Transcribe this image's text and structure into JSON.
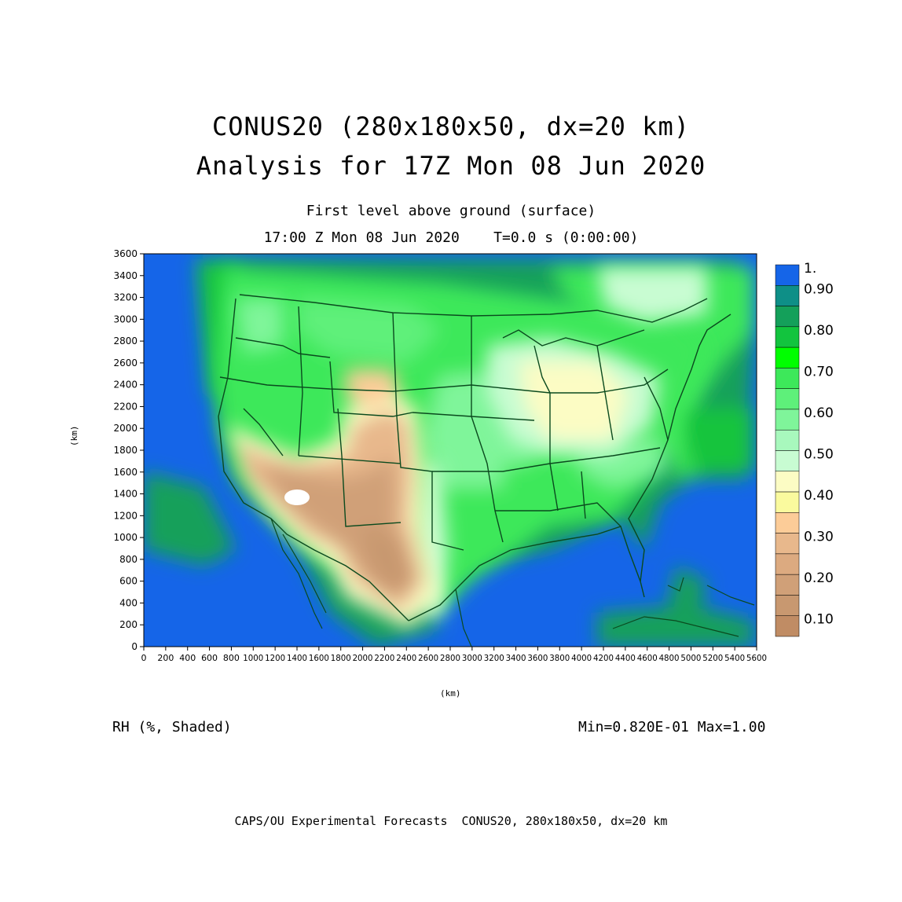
{
  "title": {
    "line1": "CONUS20 (280x180x50, dx=20 km)",
    "line2": "Analysis for 17Z Mon 08 Jun 2020"
  },
  "subtitle": {
    "level": "First level above ground (surface)",
    "time": "17:00 Z Mon 08 Jun 2020    T=0.0 s (0:00:00)"
  },
  "axes": {
    "x_label": "(km)",
    "y_label": "(km)",
    "x_ticks": [
      "0",
      "200",
      "400",
      "600",
      "800",
      "1000",
      "1200",
      "1400",
      "1600",
      "1800",
      "2000",
      "2200",
      "2400",
      "2600",
      "2800",
      "3000",
      "3200",
      "3400",
      "3600",
      "3800",
      "4000",
      "4200",
      "4400",
      "4600",
      "4800",
      "5000",
      "5200",
      "5400",
      "5600"
    ],
    "y_ticks": [
      "0",
      "200",
      "400",
      "600",
      "800",
      "1000",
      "1200",
      "1400",
      "1600",
      "1800",
      "2000",
      "2200",
      "2400",
      "2600",
      "2800",
      "3000",
      "3200",
      "3400",
      "3600"
    ],
    "x_range_km": [
      0,
      5600
    ],
    "y_range_km": [
      0,
      3600
    ]
  },
  "colorbar": {
    "levels": [
      {
        "label": "1.",
        "color": "#1565e8"
      },
      {
        "label": "0.90",
        "color": "#0e8f87"
      },
      {
        "label": "",
        "color": "#14a05a"
      },
      {
        "label": "0.80",
        "color": "#12c43e"
      },
      {
        "label": "",
        "color": "#00ff00"
      },
      {
        "label": "0.70",
        "color": "#3de85a"
      },
      {
        "label": "",
        "color": "#5ef07a"
      },
      {
        "label": "0.60",
        "color": "#7ff59a"
      },
      {
        "label": "",
        "color": "#a8f8bd"
      },
      {
        "label": "0.50",
        "color": "#c8fcd2"
      },
      {
        "label": "",
        "color": "#fcfcc4"
      },
      {
        "label": "0.40",
        "color": "#fafa9e"
      },
      {
        "label": "",
        "color": "#fccc98"
      },
      {
        "label": "0.30",
        "color": "#e8b88c"
      },
      {
        "label": "",
        "color": "#dcaa80"
      },
      {
        "label": "0.20",
        "color": "#d0a078"
      },
      {
        "label": "",
        "color": "#c89870"
      },
      {
        "label": "0.10",
        "color": "#c08c64"
      }
    ]
  },
  "variable": "RH (%, Shaded)",
  "minmax": "Min=0.820E-01 Max=1.00",
  "footer": "CAPS/OU Experimental Forecasts  CONUS20, 280x180x50, dx=20 km",
  "colors": {
    "ocean": "#1565e8",
    "boundary": "#0a4a1e"
  }
}
